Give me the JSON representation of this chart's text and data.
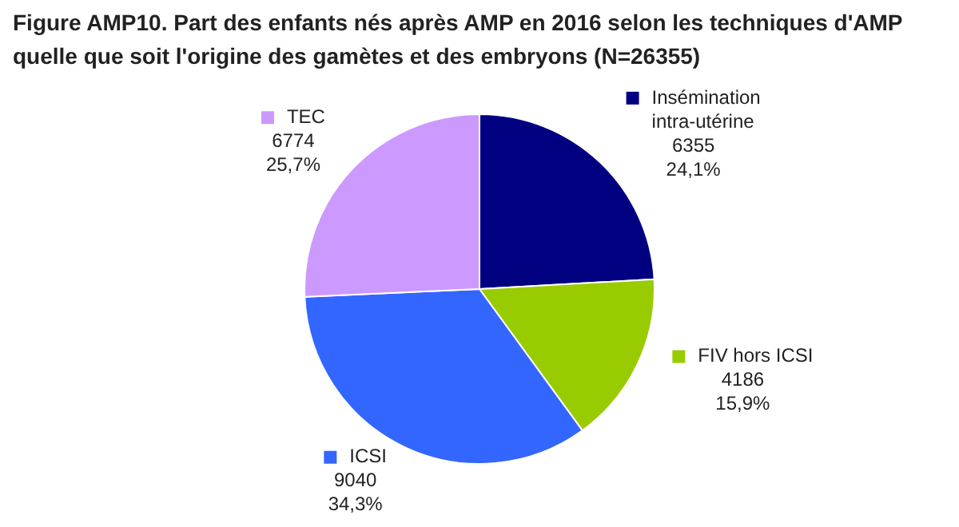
{
  "chart_data": {
    "type": "pie",
    "title": "Figure AMP10. Part des enfants nés après AMP en 2016 selon les techniques d'AMP quelle que soit l'origine des gamètes et des embryons (N=26355)",
    "categories": [
      "Insémination intra-utérine",
      "FIV hors ICSI",
      "ICSI",
      "TEC"
    ],
    "values": [
      6355,
      4186,
      9040,
      6774
    ],
    "colors": [
      "#000080",
      "#99cc00",
      "#3366ff",
      "#cc99ff"
    ],
    "value_labels": [
      "6355\n24,1%",
      "4186\n15,9%",
      "9040\n34,3%",
      "6774\n25,7%"
    ],
    "legend": "right"
  }
}
